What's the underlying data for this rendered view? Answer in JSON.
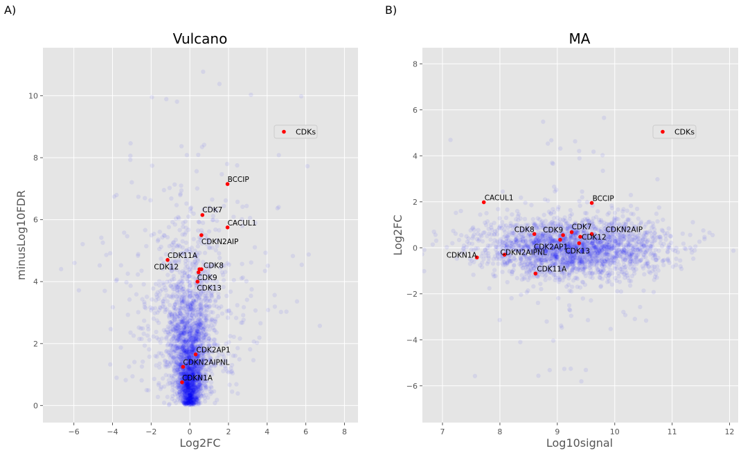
{
  "figure": {
    "panel_letters": [
      "A)",
      "B)"
    ]
  },
  "chart_data": [
    {
      "type": "scatter",
      "title": "Vulcano",
      "xlabel": "Log2FC",
      "ylabel": "minusLog10FDR",
      "xlim": [
        -7.6,
        8.7
      ],
      "ylim": [
        -0.55,
        11.55
      ],
      "xticks": [
        -6,
        -4,
        -2,
        0,
        2,
        4,
        6,
        8
      ],
      "yticks": [
        0,
        2,
        4,
        6,
        8,
        10
      ],
      "grid": true,
      "background_color": "#e5e5e5",
      "legend": {
        "placement": "upper-right",
        "entries": [
          "CDKs"
        ]
      },
      "series": [
        {
          "name": "CDKs",
          "color": "#ff0000",
          "points": [
            {
              "label": "BCCIP",
              "x": 1.95,
              "y": 7.15
            },
            {
              "label": "CDK7",
              "x": 0.65,
              "y": 6.15
            },
            {
              "label": "CACUL1",
              "x": 1.95,
              "y": 5.75
            },
            {
              "label": "CDKN2AIP",
              "x": 0.6,
              "y": 5.5
            },
            {
              "label": "CDK11A",
              "x": -1.15,
              "y": 4.7
            },
            {
              "label": "CDK12",
              "x": 0.5,
              "y": 4.4
            },
            {
              "label": "CDK8",
              "x": 0.6,
              "y": 4.4
            },
            {
              "label": "CDK9",
              "x": 0.45,
              "y": 4.3
            },
            {
              "label": "CDK13",
              "x": 0.4,
              "y": 4.0
            },
            {
              "label": "CDK2AP1",
              "x": 0.3,
              "y": 1.65
            },
            {
              "label": "CDKN2AIPNL",
              "x": -0.35,
              "y": 1.25
            },
            {
              "label": "CDKN1A",
              "x": -0.4,
              "y": 0.75
            }
          ]
        }
      ],
      "background_cloud": {
        "color": "#0000ff",
        "description_count": 2800
      }
    },
    {
      "type": "scatter",
      "title": "MA",
      "xlabel": "Log10signal",
      "ylabel": "Log2FC",
      "xlim": [
        6.65,
        12.15
      ],
      "ylim": [
        -7.6,
        8.7
      ],
      "xticks": [
        7,
        8,
        9,
        10,
        11,
        12
      ],
      "yticks": [
        -6,
        -4,
        -2,
        0,
        2,
        4,
        6,
        8
      ],
      "grid": true,
      "background_color": "#e5e5e5",
      "legend": {
        "placement": "upper-right",
        "entries": [
          "CDKs"
        ]
      },
      "series": [
        {
          "name": "CDKs",
          "color": "#ff0000",
          "points": [
            {
              "label": "CACUL1",
              "x": 7.72,
              "y": 1.98
            },
            {
              "label": "BCCIP",
              "x": 9.6,
              "y": 1.95
            },
            {
              "label": "CDK7",
              "x": 9.25,
              "y": 0.68
            },
            {
              "label": "CDK8",
              "x": 8.6,
              "y": 0.6
            },
            {
              "label": "CDK9",
              "x": 9.1,
              "y": 0.55
            },
            {
              "label": "CDKN2AIP",
              "x": 9.6,
              "y": 0.6
            },
            {
              "label": "CDK12",
              "x": 9.4,
              "y": 0.48
            },
            {
              "label": "CDK2AP1",
              "x": 9.05,
              "y": 0.35
            },
            {
              "label": "CDK13",
              "x": 9.38,
              "y": 0.2
            },
            {
              "label": "CDKN2AIPNL",
              "x": 8.08,
              "y": -0.3
            },
            {
              "label": "CDKN1A",
              "x": 7.6,
              "y": -0.42
            },
            {
              "label": "CDK11A",
              "x": 8.62,
              "y": -1.12
            }
          ]
        }
      ],
      "background_cloud": {
        "color": "#0000ff",
        "description_count": 2400
      }
    }
  ]
}
